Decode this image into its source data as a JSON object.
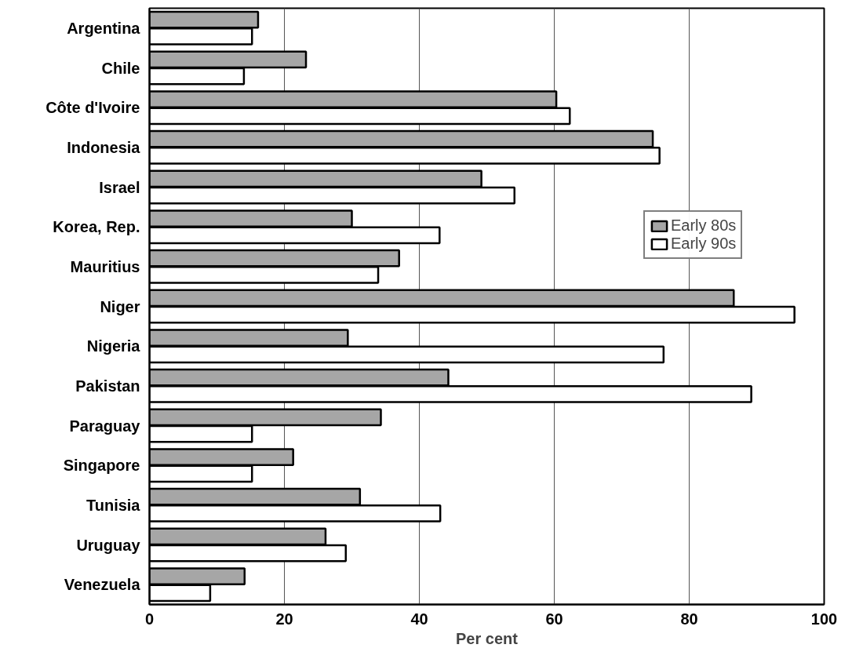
{
  "chart_data": {
    "type": "bar",
    "orientation": "horizontal",
    "xlabel": "Per cent",
    "categories": [
      "Argentina",
      "Chile",
      "Côte d'Ivoire",
      "Indonesia",
      "Israel",
      "Korea, Rep.",
      "Mauritius",
      "Niger",
      "Nigeria",
      "Pakistan",
      "Paraguay",
      "Singapore",
      "Tunisia",
      "Uruguay",
      "Venezuela"
    ],
    "series": [
      {
        "name": "Early 80s",
        "color": "#a6a6a6",
        "values": [
          16.1,
          23.2,
          60.3,
          74.6,
          49.2,
          30.0,
          37.0,
          86.6,
          29.4,
          44.3,
          34.3,
          21.3,
          31.2,
          26.1,
          14.1
        ]
      },
      {
        "name": "Early 90s",
        "color": "#ffffff",
        "values": [
          15.2,
          14.0,
          62.3,
          75.6,
          54.1,
          43.0,
          33.9,
          95.6,
          76.2,
          89.2,
          15.2,
          15.2,
          43.1,
          29.1,
          9.0
        ]
      }
    ],
    "xlim": [
      0,
      100
    ],
    "xticks": [
      0,
      20,
      40,
      60,
      80,
      100
    ],
    "grid": "x",
    "legend": "right"
  }
}
